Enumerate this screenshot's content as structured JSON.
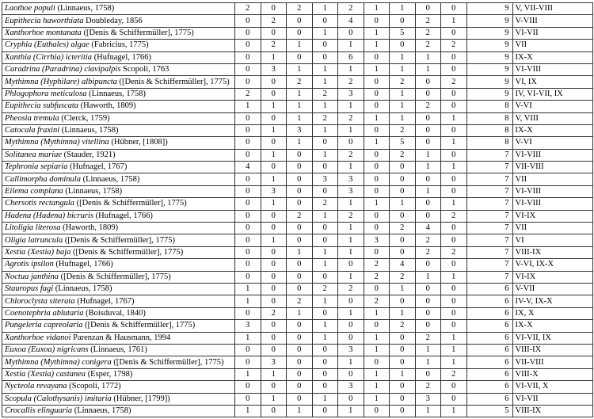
{
  "table": {
    "rows": [
      {
        "species": "Laothoe populi",
        "author": "(Linnaeus, 1758)",
        "counts": [
          2,
          0,
          2,
          1,
          2,
          1,
          1,
          0,
          0
        ],
        "total": 9,
        "months": "V, VII-VIII"
      },
      {
        "species": "Eupithecia haworthiata",
        "author": "Doubleday, 1856",
        "counts": [
          0,
          2,
          0,
          0,
          4,
          0,
          0,
          2,
          1
        ],
        "total": 9,
        "months": "V-VIII"
      },
      {
        "species": "Xanthorhoe montanata",
        "author": "([Denis & Schiffermüller], 1775)",
        "counts": [
          0,
          0,
          0,
          1,
          0,
          1,
          5,
          2,
          0
        ],
        "total": 9,
        "months": "VI-VII"
      },
      {
        "species": "Cryphia (Euthales) algae",
        "author": "(Fabricius, 1775)",
        "counts": [
          0,
          2,
          1,
          0,
          1,
          1,
          0,
          2,
          2
        ],
        "total": 9,
        "months": "VII"
      },
      {
        "species": "Xanthia (Cirrhia) icteritia",
        "author": "(Hufnagel, 1766)",
        "counts": [
          0,
          1,
          0,
          0,
          6,
          0,
          1,
          1,
          0
        ],
        "total": 9,
        "months": "IX-X"
      },
      {
        "species": "Caradrina (Paradrina) clavipalpis",
        "author": "Scopoli, 1763",
        "counts": [
          0,
          3,
          1,
          1,
          1,
          1,
          1,
          1,
          0
        ],
        "total": 9,
        "months": "VI-VIII"
      },
      {
        "species": "Mythimna (Hyphilare) albipuncta",
        "author": "([Denis & Schiffermüller], 1775)",
        "counts": [
          0,
          0,
          2,
          1,
          2,
          0,
          2,
          0,
          2
        ],
        "total": 9,
        "months": "VI, IX"
      },
      {
        "species": "Phlogophora meticulosa",
        "author": "(Linnaeus, 1758)",
        "counts": [
          2,
          0,
          1,
          2,
          3,
          0,
          1,
          0,
          0
        ],
        "total": 9,
        "months": "IV, VI-VII, IX"
      },
      {
        "species": "Eupithecia subfuscata",
        "author": "(Haworth, 1809)",
        "counts": [
          1,
          1,
          1,
          1,
          1,
          0,
          1,
          2,
          0
        ],
        "total": 8,
        "months": "V-VI"
      },
      {
        "species": "Pheosia tremula",
        "author": "(Clerck, 1759)",
        "counts": [
          0,
          0,
          1,
          2,
          2,
          1,
          1,
          0,
          1
        ],
        "total": 8,
        "months": "V, VIII"
      },
      {
        "species": "Catocala fraxini",
        "author": "(Linnaeus, 1758)",
        "counts": [
          0,
          1,
          3,
          1,
          1,
          0,
          2,
          0,
          0
        ],
        "total": 8,
        "months": "IX-X"
      },
      {
        "species": "Mythimna (Mythimna) vitellina",
        "author": "(Hübner, [1808])",
        "counts": [
          0,
          0,
          1,
          0,
          0,
          1,
          5,
          0,
          1
        ],
        "total": 8,
        "months": "V-VI"
      },
      {
        "species": "Solitanea mariae",
        "author": "(Stauder, 1921)",
        "counts": [
          0,
          1,
          0,
          1,
          2,
          0,
          2,
          1,
          0
        ],
        "total": 7,
        "months": "VI-VIII"
      },
      {
        "species": "Tephronia sepiaria",
        "author": "(Hufnagel, 1767)",
        "counts": [
          4,
          0,
          0,
          0,
          1,
          0,
          0,
          1,
          1
        ],
        "total": 7,
        "months": "VII-VIII"
      },
      {
        "species": "Callimorpha dominula",
        "author": "(Linnaeus, 1758)",
        "counts": [
          0,
          1,
          0,
          3,
          3,
          0,
          0,
          0,
          0
        ],
        "total": 7,
        "months": "VII"
      },
      {
        "species": "Eilema complana",
        "author": "(Linnaeus, 1758)",
        "counts": [
          0,
          3,
          0,
          0,
          3,
          0,
          0,
          1,
          0
        ],
        "total": 7,
        "months": "VI-VIII"
      },
      {
        "species": "Chersotis rectangula",
        "author": "([Denis & Schiffermüller], 1775)",
        "counts": [
          0,
          1,
          0,
          2,
          1,
          1,
          1,
          0,
          1
        ],
        "total": 7,
        "months": "VI-VIII"
      },
      {
        "species": "Hadena (Hadena) bicruris",
        "author": "(Hufnagel, 1766)",
        "counts": [
          0,
          0,
          2,
          1,
          2,
          0,
          0,
          0,
          2
        ],
        "total": 7,
        "months": "VI-IX"
      },
      {
        "species": "Litoligia literosa",
        "author": "(Haworth, 1809)",
        "counts": [
          0,
          0,
          0,
          0,
          1,
          0,
          2,
          4,
          0
        ],
        "total": 7,
        "months": "VII"
      },
      {
        "species": "Oligia latruncula",
        "author": "([Denis & Schiffermüller], 1775)",
        "counts": [
          0,
          1,
          0,
          0,
          1,
          3,
          0,
          2,
          0
        ],
        "total": 7,
        "months": "VI"
      },
      {
        "species": "Xestia (Xestia) baja",
        "author": "([Denis & Schiffermüller], 1775)",
        "counts": [
          0,
          0,
          1,
          1,
          1,
          0,
          0,
          2,
          2
        ],
        "total": 7,
        "months": "VIII-IX"
      },
      {
        "species": "Agrotis ipsilon",
        "author": "(Hufnagel, 1766)",
        "counts": [
          0,
          0,
          0,
          1,
          0,
          2,
          4,
          0,
          0
        ],
        "total": 7,
        "months": "V-VI, IX-X"
      },
      {
        "species": "Noctua janthina",
        "author": "([Denis & Schiffermüller], 1775)",
        "counts": [
          0,
          0,
          0,
          0,
          1,
          2,
          2,
          1,
          1
        ],
        "total": 7,
        "months": "VI-IX"
      },
      {
        "species": "Stauropus fagi",
        "author": "(Linnaeus, 1758)",
        "counts": [
          1,
          0,
          0,
          2,
          2,
          0,
          1,
          0,
          0
        ],
        "total": 6,
        "months": "V-VII"
      },
      {
        "species": "Chloroclysta siterata",
        "author": "(Hufnagel, 1767)",
        "counts": [
          1,
          0,
          2,
          1,
          0,
          2,
          0,
          0,
          0
        ],
        "total": 6,
        "months": "IV-V, IX-X"
      },
      {
        "species": "Coenotephria ablutaria",
        "author": "(Boisduval, 1840)",
        "counts": [
          0,
          2,
          1,
          0,
          1,
          1,
          1,
          0,
          0
        ],
        "total": 6,
        "months": "IX, X"
      },
      {
        "species": "Pungeleria capreolaria",
        "author": "([Denis & Schiffermüller], 1775)",
        "counts": [
          3,
          0,
          0,
          1,
          0,
          0,
          2,
          0,
          0
        ],
        "total": 6,
        "months": "IX-X"
      },
      {
        "species": "Xanthorhoe vidanoi",
        "author": "Parenzan & Hausmann, 1994",
        "counts": [
          1,
          0,
          0,
          1,
          0,
          1,
          0,
          2,
          1
        ],
        "total": 6,
        "months": "VI-VII, IX"
      },
      {
        "species": "Euxoa (Euxoa) nigricans",
        "author": "(Linnaeus, 1761)",
        "counts": [
          0,
          0,
          0,
          0,
          3,
          1,
          0,
          1,
          1
        ],
        "total": 6,
        "months": "VIII-IX"
      },
      {
        "species": "Mythimna (Mythimna) conigera",
        "author": "([Denis & Schiffermüller], 1775)",
        "counts": [
          0,
          3,
          0,
          0,
          1,
          0,
          0,
          1,
          1
        ],
        "total": 6,
        "months": "VII-VIII"
      },
      {
        "species": "Xestia (Xestia) castanea",
        "author": "(Esper, 1798)",
        "counts": [
          1,
          1,
          0,
          0,
          0,
          1,
          1,
          0,
          2
        ],
        "total": 6,
        "months": "VIII-X"
      },
      {
        "species": "Nycteola revayana",
        "author": "(Scopoli, 1772)",
        "counts": [
          0,
          0,
          0,
          0,
          3,
          1,
          0,
          2,
          0
        ],
        "total": 6,
        "months": "VI-VII, X"
      },
      {
        "species": "Scopula (Calothysanis) imitaria",
        "author": "(Hübner, [1799])",
        "counts": [
          0,
          1,
          0,
          1,
          0,
          1,
          0,
          3,
          0
        ],
        "total": 6,
        "months": "VI-VII"
      },
      {
        "species": "Crocallis elinguaria",
        "author": "(Linnaeus, 1758)",
        "counts": [
          1,
          0,
          1,
          0,
          1,
          0,
          0,
          1,
          1
        ],
        "total": 5,
        "months": "VIII-IX"
      }
    ]
  }
}
